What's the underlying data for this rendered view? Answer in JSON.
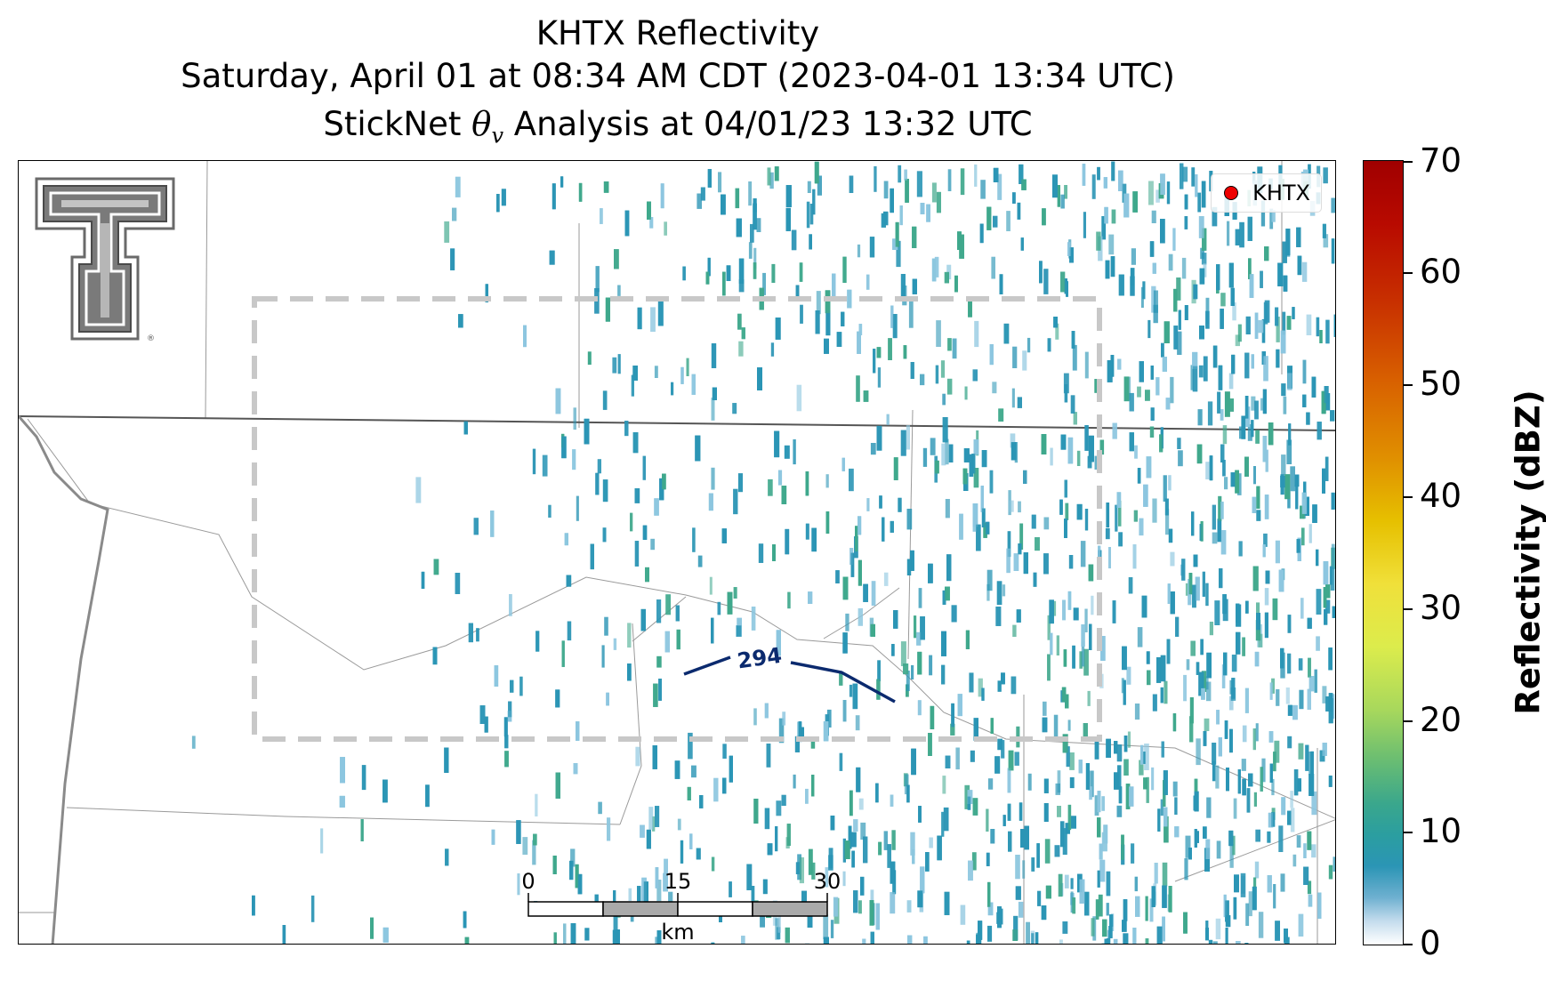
{
  "title": {
    "line1": "KHTX Reflectivity",
    "line2": "Saturday, April 01 at 08:34 AM CDT (2023-04-01 13:34 UTC)",
    "line3_prefix": "StickNet ",
    "line3_symbol": "θ",
    "line3_subscript": "v",
    "line3_suffix": " Analysis at 04/01/23 13:32 UTC"
  },
  "legend": {
    "label": "KHTX",
    "marker_color": "#ee0000"
  },
  "contour": {
    "label": "294",
    "color": "#0b2a6e"
  },
  "scale_bar": {
    "ticks": [
      "0",
      "15",
      "30"
    ],
    "unit": "km"
  },
  "colorbar": {
    "title": "Reflectivity (dBZ)",
    "ticks": [
      "0",
      "10",
      "20",
      "30",
      "40",
      "50",
      "60",
      "70"
    ]
  },
  "logo": {
    "name": "Texas Tech Double T"
  },
  "colors": {
    "echo_primary": "#2b95b5",
    "echo_light": "#8cc6df",
    "echo_green": "#3fa88c",
    "analysis_box": "#c8c8c8"
  }
}
